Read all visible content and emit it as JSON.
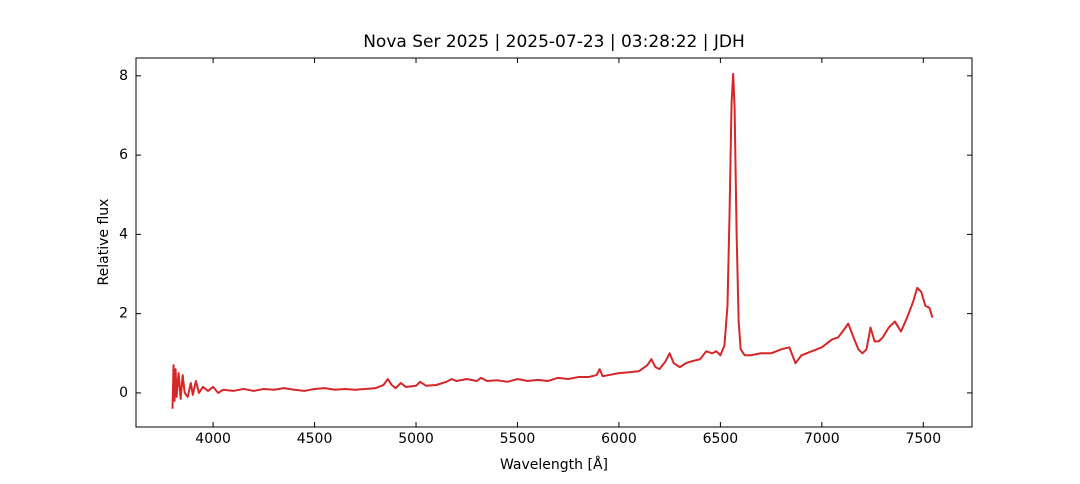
{
  "chart_data": {
    "type": "line",
    "title": "Nova Ser 2025 | 2025-07-23 | 03:28:22 | JDH",
    "x_label": "Wavelength [Å]",
    "y_label": "Relative flux",
    "xlim": [
      3620,
      7740
    ],
    "ylim": [
      -0.86,
      8.45
    ],
    "xticks": [
      4000,
      4500,
      5000,
      5500,
      6000,
      6500,
      7000,
      7500
    ],
    "yticks": [
      0,
      2,
      4,
      6,
      8
    ],
    "series": [
      {
        "color": "#d62728",
        "x": [
          3800,
          3805,
          3810,
          3815,
          3820,
          3830,
          3840,
          3850,
          3860,
          3875,
          3890,
          3900,
          3915,
          3930,
          3950,
          3975,
          4000,
          4025,
          4050,
          4100,
          4150,
          4200,
          4250,
          4300,
          4350,
          4400,
          4450,
          4500,
          4550,
          4600,
          4650,
          4700,
          4750,
          4800,
          4840,
          4861,
          4880,
          4900,
          4925,
          4950,
          5000,
          5020,
          5050,
          5100,
          5150,
          5175,
          5200,
          5250,
          5300,
          5320,
          5350,
          5400,
          5450,
          5500,
          5550,
          5600,
          5650,
          5700,
          5750,
          5800,
          5850,
          5890,
          5905,
          5920,
          5950,
          6000,
          6050,
          6100,
          6140,
          6160,
          6180,
          6200,
          6230,
          6250,
          6270,
          6300,
          6330,
          6360,
          6400,
          6430,
          6460,
          6480,
          6500,
          6520,
          6535,
          6545,
          6555,
          6563,
          6570,
          6580,
          6590,
          6600,
          6620,
          6650,
          6700,
          6750,
          6800,
          6840,
          6870,
          6900,
          6950,
          7000,
          7050,
          7080,
          7110,
          7130,
          7160,
          7180,
          7200,
          7220,
          7240,
          7260,
          7280,
          7300,
          7330,
          7360,
          7390,
          7420,
          7450,
          7470,
          7490,
          7510,
          7530,
          7545
        ],
        "values": [
          -0.4,
          0.7,
          -0.2,
          0.6,
          -0.1,
          0.5,
          -0.15,
          0.45,
          0.0,
          -0.1,
          0.25,
          -0.05,
          0.3,
          0.0,
          0.15,
          0.05,
          0.15,
          0.0,
          0.08,
          0.05,
          0.1,
          0.05,
          0.1,
          0.08,
          0.12,
          0.08,
          0.05,
          0.1,
          0.12,
          0.08,
          0.1,
          0.08,
          0.1,
          0.12,
          0.2,
          0.35,
          0.2,
          0.12,
          0.25,
          0.15,
          0.18,
          0.28,
          0.18,
          0.2,
          0.28,
          0.35,
          0.3,
          0.35,
          0.3,
          0.38,
          0.3,
          0.32,
          0.28,
          0.35,
          0.3,
          0.33,
          0.3,
          0.38,
          0.35,
          0.4,
          0.4,
          0.45,
          0.6,
          0.42,
          0.45,
          0.5,
          0.52,
          0.55,
          0.7,
          0.85,
          0.65,
          0.6,
          0.8,
          1.0,
          0.75,
          0.65,
          0.75,
          0.8,
          0.85,
          1.05,
          1.0,
          1.05,
          0.95,
          1.2,
          2.2,
          4.5,
          7.3,
          8.05,
          7.2,
          4.0,
          1.8,
          1.1,
          0.95,
          0.95,
          1.0,
          1.0,
          1.1,
          1.15,
          0.75,
          0.95,
          1.05,
          1.15,
          1.35,
          1.4,
          1.6,
          1.75,
          1.35,
          1.1,
          1.0,
          1.1,
          1.65,
          1.3,
          1.3,
          1.4,
          1.65,
          1.8,
          1.55,
          1.9,
          2.3,
          2.65,
          2.55,
          2.2,
          2.15,
          1.9
        ]
      }
    ]
  }
}
